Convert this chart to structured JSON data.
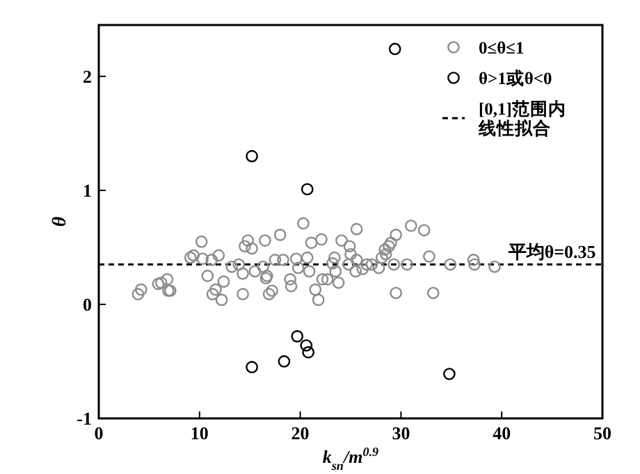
{
  "chart_data": {
    "type": "scatter",
    "xlabel": "k$_{sn}$/m$^{0.9}$",
    "ylabel": "θ",
    "xlim": [
      0,
      50
    ],
    "ylim": [
      -1,
      2.45
    ],
    "xticks": [
      0,
      10,
      20,
      30,
      40,
      50
    ],
    "yticks": [
      -1,
      0,
      1,
      2
    ],
    "grid": false,
    "legend": "top right",
    "marker": "circle",
    "series": [
      {
        "name": "0≤θ≤1",
        "color": "#8c8c8c",
        "x": [
          3.9,
          4.2,
          5.9,
          6.2,
          6.8,
          6.9,
          7.1,
          9.1,
          9.4,
          10.2,
          10.3,
          10.8,
          11.2,
          11.9,
          11.3,
          11.6,
          12.2,
          12.4,
          13.2,
          13.9,
          14.3,
          14.3,
          14.5,
          14.8,
          15.2,
          15.5,
          16.3,
          16.5,
          16.6,
          16.7,
          16.9,
          17.2,
          17.5,
          18.0,
          18.3,
          19.0,
          19.1,
          19.6,
          19.8,
          20.3,
          20.7,
          20.9,
          21.1,
          21.5,
          21.8,
          22.1,
          22.2,
          22.7,
          23.2,
          23.4,
          23.5,
          23.8,
          24.1,
          24.9,
          25.0,
          25.5,
          25.6,
          25.6,
          24.8,
          26.2,
          26.6,
          27.1,
          27.8,
          28.1,
          28.4,
          28.5,
          28.8,
          29.0,
          29.5,
          29.3,
          29.5,
          30.6,
          31.0,
          32.3,
          32.8,
          33.2,
          34.9,
          37.2,
          37.3,
          39.3
        ],
        "values": [
          0.09,
          0.13,
          0.18,
          0.19,
          0.22,
          0.12,
          0.12,
          0.41,
          0.43,
          0.55,
          0.4,
          0.25,
          0.39,
          0.43,
          0.09,
          0.13,
          0.04,
          0.2,
          0.33,
          0.35,
          0.27,
          0.09,
          0.51,
          0.56,
          0.49,
          0.29,
          0.33,
          0.56,
          0.23,
          0.25,
          0.09,
          0.12,
          0.39,
          0.61,
          0.39,
          0.22,
          0.16,
          0.4,
          0.32,
          0.71,
          0.41,
          0.29,
          0.54,
          0.13,
          0.04,
          0.57,
          0.22,
          0.22,
          0.36,
          0.41,
          0.29,
          0.19,
          0.56,
          0.51,
          0.44,
          0.29,
          0.66,
          0.39,
          0.35,
          0.31,
          0.35,
          0.35,
          0.32,
          0.41,
          0.48,
          0.44,
          0.51,
          0.54,
          0.61,
          0.35,
          0.1,
          0.35,
          0.69,
          0.65,
          0.42,
          0.1,
          0.35,
          0.39,
          0.35,
          0.33
        ]
      },
      {
        "name": "θ>1或θ<0",
        "color": "#000000",
        "x": [
          29.4,
          15.2,
          20.7,
          19.7,
          20.6,
          20.8,
          15.2,
          18.4,
          34.8
        ],
        "values": [
          2.24,
          1.3,
          1.01,
          -0.28,
          -0.36,
          -0.42,
          -0.55,
          -0.5,
          -0.61
        ]
      },
      {
        "name": "[0,1]范围内线性拟合",
        "color": "#000000",
        "type": "line",
        "line_style": "dashed",
        "marker": "none",
        "x": [
          0,
          50
        ],
        "values": [
          0.35,
          0.35
        ]
      }
    ],
    "annotations": [
      {
        "text": "平均θ=0.35",
        "x": 45,
        "y": 0.35
      }
    ]
  }
}
